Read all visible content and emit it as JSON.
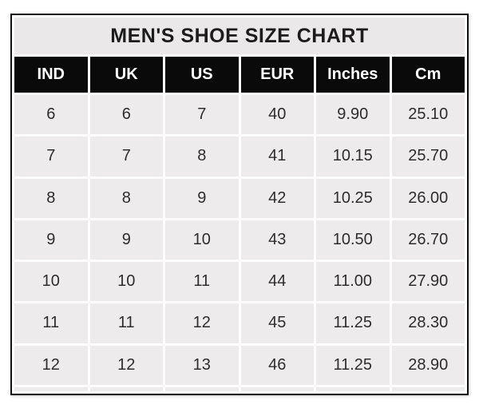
{
  "table": {
    "title": "MEN'S SHOE SIZE CHART",
    "headers": [
      "IND",
      "UK",
      "US",
      "EUR",
      "Inches",
      "Cm"
    ],
    "rows": [
      [
        "6",
        "6",
        "7",
        "40",
        "9.90",
        "25.10"
      ],
      [
        "7",
        "7",
        "8",
        "41",
        "10.15",
        "25.70"
      ],
      [
        "8",
        "8",
        "9",
        "42",
        "10.25",
        "26.00"
      ],
      [
        "9",
        "9",
        "10",
        "43",
        "10.50",
        "26.70"
      ],
      [
        "10",
        "10",
        "11",
        "44",
        "11.00",
        "27.90"
      ],
      [
        "11",
        "11",
        "12",
        "45",
        "11.25",
        "28.30"
      ],
      [
        "12",
        "12",
        "13",
        "46",
        "11.25",
        "28.90"
      ]
    ],
    "colors": {
      "border": "#111111",
      "grid": "#ffffff",
      "title_bg": "#eae8e8",
      "title_text": "#1c1c1c",
      "header_bg": "#0a0a0a",
      "header_text": "#ffffff",
      "cell_bg": "#edebeb",
      "text": "#2e2c2c"
    }
  },
  "chart_data": {
    "type": "table",
    "title": "MEN'S SHOE SIZE CHART",
    "columns": [
      "IND",
      "UK",
      "US",
      "EUR",
      "Inches",
      "Cm"
    ],
    "rows": [
      [
        6,
        6,
        7,
        40,
        9.9,
        25.1
      ],
      [
        7,
        7,
        8,
        41,
        10.15,
        25.7
      ],
      [
        8,
        8,
        9,
        42,
        10.25,
        26.0
      ],
      [
        9,
        9,
        10,
        43,
        10.5,
        26.7
      ],
      [
        10,
        10,
        11,
        44,
        11.0,
        27.9
      ],
      [
        11,
        11,
        12,
        45,
        11.25,
        28.3
      ],
      [
        12,
        12,
        13,
        46,
        11.25,
        28.9
      ]
    ],
    "layout": {
      "title_position": "top",
      "header_style": "black-band",
      "grid": "white-lines-on-gray-cells"
    }
  }
}
